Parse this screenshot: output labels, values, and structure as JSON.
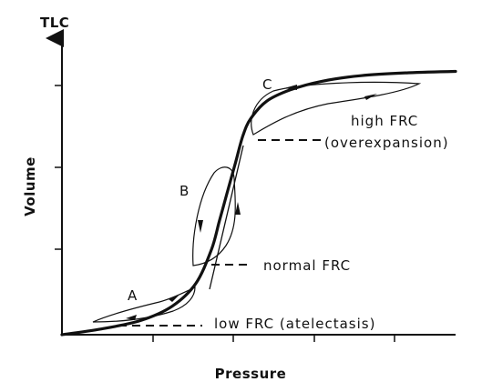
{
  "chart_data": {
    "type": "line",
    "title": "",
    "xlabel": "Pressure",
    "ylabel": "Volume",
    "ylabel_top": "TLC",
    "x_ticks": 4,
    "y_ticks": 3,
    "grid": false,
    "main_curve": {
      "description_points": "sigmoid pressure-volume curve",
      "x": [
        0.0,
        0.1,
        0.2,
        0.28,
        0.34,
        0.38,
        0.4,
        0.42,
        0.44,
        0.46,
        0.48,
        0.52,
        0.58,
        0.66,
        0.76,
        0.88,
        1.0
      ],
      "y": [
        0.0,
        0.02,
        0.05,
        0.1,
        0.18,
        0.3,
        0.4,
        0.5,
        0.6,
        0.7,
        0.76,
        0.82,
        0.86,
        0.89,
        0.91,
        0.92,
        0.925
      ]
    },
    "hysteresis_loops": [
      {
        "label": "A"
      },
      {
        "label": "B"
      },
      {
        "label": "C"
      }
    ],
    "annotations": [
      {
        "id": "low",
        "text": "low FRC (atelectasis)"
      },
      {
        "id": "normal",
        "text": "normal FRC"
      },
      {
        "id": "high_1",
        "text": "high FRC"
      },
      {
        "id": "high_2",
        "text": "(overexpansion)"
      }
    ]
  }
}
